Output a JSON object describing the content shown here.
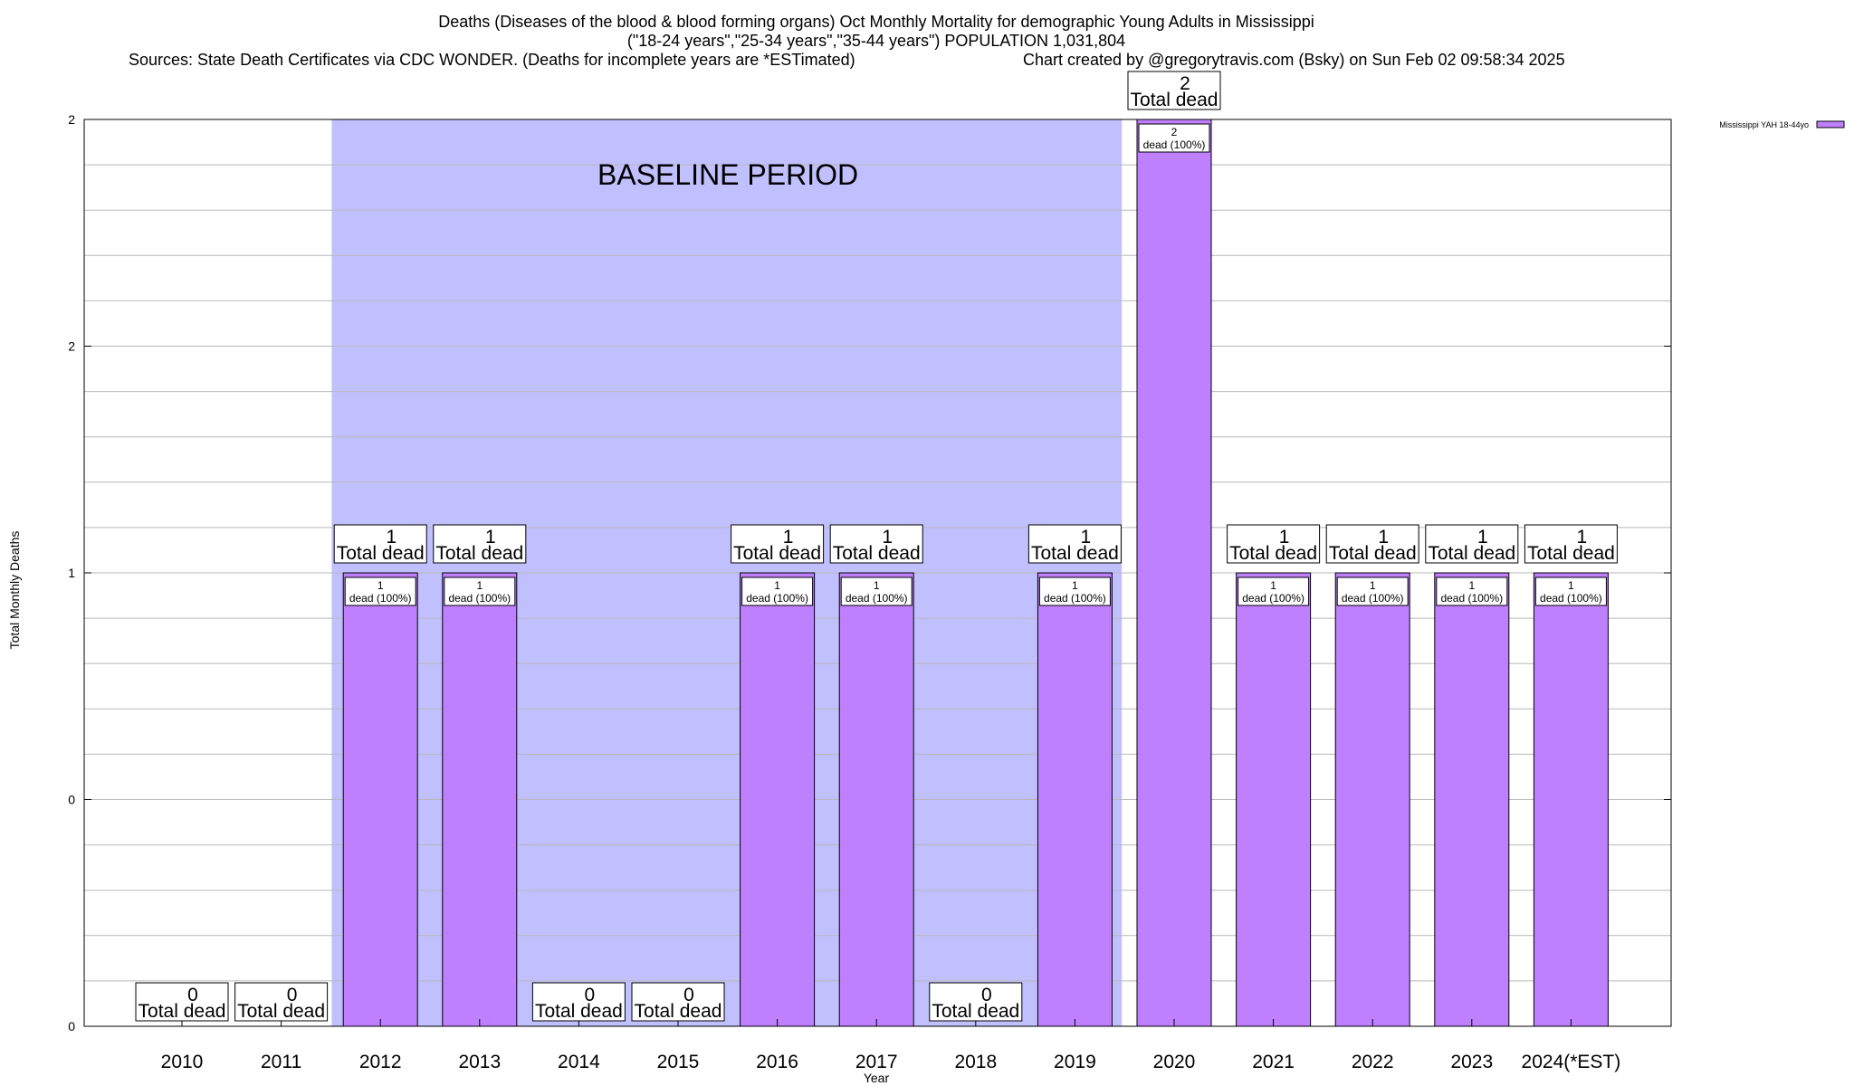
{
  "chart_data": {
    "type": "bar",
    "title_lines": [
      "Deaths (Diseases of the blood & blood forming organs) Oct Monthly Mortality for demographic Young Adults in Mississippi",
      "(\"18-24 years\",\"25-34 years\",\"35-44 years\") POPULATION 1,031,804"
    ],
    "sources": "Sources: State Death Certificates via CDC WONDER. (Deaths for incomplete years are *ESTimated)",
    "credit": "Chart created by @gregorytravis.com (Bsky) on Sun Feb 02 09:58:34 2025",
    "xlabel": "Year",
    "ylabel": "Total Monthly Deaths",
    "categories": [
      "2010",
      "2011",
      "2012",
      "2013",
      "2014",
      "2015",
      "2016",
      "2017",
      "2018",
      "2019",
      "2020",
      "2021",
      "2022",
      "2023",
      "2024(*EST)"
    ],
    "series": [
      {
        "name": "Mississippi YAH 18-44yo",
        "values": [
          0,
          0,
          1,
          1,
          0,
          0,
          1,
          1,
          0,
          1,
          2,
          1,
          1,
          1,
          1
        ],
        "color": "#bf80ff"
      }
    ],
    "ylim": [
      0,
      2
    ],
    "y_tick_labels": [
      "0",
      "0",
      "1",
      "2",
      "2"
    ],
    "y_tick_values": [
      0,
      0.5,
      1,
      1.5,
      2
    ],
    "total_label": "Total dead",
    "bar_label_suffix": "dead (100%)",
    "baseline_label": "BASELINE PERIOD",
    "baseline_range": [
      "2012",
      "2019"
    ],
    "baseline_color": "#c0c0ff",
    "legend_position": "top-right",
    "grid": true
  }
}
